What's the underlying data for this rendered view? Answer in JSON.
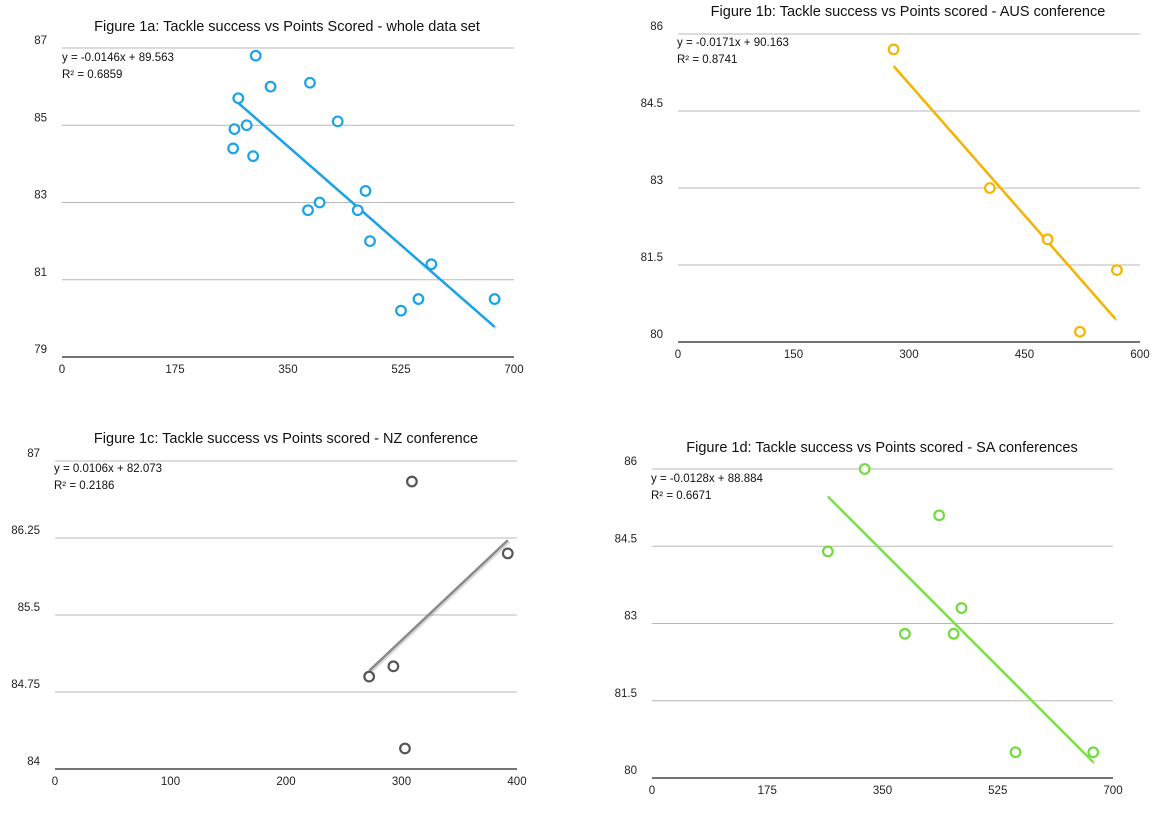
{
  "chart_data": [
    {
      "type": "scatter",
      "title": "Figure 1a: Tackle success vs Points Scored - whole data set",
      "color": "#1aa3e8",
      "trend_color": "#1aa3e8",
      "xlim": [
        0,
        700
      ],
      "ylim": [
        79,
        87
      ],
      "xticks": [
        0,
        175,
        350,
        525,
        700
      ],
      "yticks": [
        79,
        81,
        83,
        85,
        87
      ],
      "ytick_labels": [
        "79",
        "81",
        "83",
        "85",
        "87"
      ],
      "equation": "y = -0.0146x + 89.563",
      "r2": "R² = 0.6859",
      "trend": {
        "slope": -0.0146,
        "intercept": 89.563,
        "x_range": [
          265,
          670
        ]
      },
      "points": [
        {
          "x": 265,
          "y": 84.4
        },
        {
          "x": 267,
          "y": 84.9
        },
        {
          "x": 273,
          "y": 85.7
        },
        {
          "x": 286,
          "y": 85.0
        },
        {
          "x": 296,
          "y": 84.2
        },
        {
          "x": 300,
          "y": 86.8
        },
        {
          "x": 323,
          "y": 86.0
        },
        {
          "x": 381,
          "y": 82.8
        },
        {
          "x": 384,
          "y": 86.1
        },
        {
          "x": 399,
          "y": 83.0
        },
        {
          "x": 427,
          "y": 85.1
        },
        {
          "x": 458,
          "y": 82.8
        },
        {
          "x": 470,
          "y": 83.3
        },
        {
          "x": 477,
          "y": 82.0
        },
        {
          "x": 525,
          "y": 80.2
        },
        {
          "x": 552,
          "y": 80.5
        },
        {
          "x": 572,
          "y": 81.4
        },
        {
          "x": 670,
          "y": 80.5
        }
      ]
    },
    {
      "type": "scatter",
      "title": "Figure 1b: Tackle success vs Points scored - AUS conference",
      "color": "#f5b400",
      "trend_color": "#f5b400",
      "xlim": [
        0,
        600
      ],
      "ylim": [
        80,
        86
      ],
      "xticks": [
        0,
        150,
        300,
        450,
        600
      ],
      "yticks": [
        80,
        81.5,
        83,
        84.5,
        86
      ],
      "ytick_labels": [
        "80",
        "81.5",
        "83",
        "84.5",
        "86"
      ],
      "equation": "y = -0.0171x + 90.163",
      "r2": "R² = 0.8741",
      "trend": {
        "slope": -0.0171,
        "intercept": 90.163,
        "x_range": [
          280,
          568
        ]
      },
      "points": [
        {
          "x": 280,
          "y": 85.7
        },
        {
          "x": 405,
          "y": 83.0
        },
        {
          "x": 480,
          "y": 82.0
        },
        {
          "x": 522,
          "y": 80.2
        },
        {
          "x": 570,
          "y": 81.4
        }
      ]
    },
    {
      "type": "scatter",
      "title": "Figure 1c: Tackle success vs Points scored - NZ conference",
      "color": "#555555",
      "trend_color": "#8a8a8a",
      "xlim": [
        0,
        400
      ],
      "ylim": [
        84,
        87
      ],
      "xticks": [
        0,
        100,
        200,
        300,
        400
      ],
      "yticks": [
        84,
        84.75,
        85.5,
        86.25,
        87
      ],
      "ytick_labels": [
        "84",
        "84.75",
        "85.5",
        "86.25",
        "87"
      ],
      "equation": "y = 0.0106x + 82.073",
      "r2": "R² = 0.2186",
      "trend": {
        "slope": 0.0106,
        "intercept": 82.073,
        "x_range": [
          272,
          392
        ]
      },
      "points": [
        {
          "x": 272,
          "y": 84.9
        },
        {
          "x": 293,
          "y": 85.0
        },
        {
          "x": 303,
          "y": 84.2
        },
        {
          "x": 309,
          "y": 86.8
        },
        {
          "x": 392,
          "y": 86.1
        }
      ]
    },
    {
      "type": "scatter",
      "title": "Figure 1d: Tackle success vs Points scored - SA conferences",
      "color": "#6fdc3c",
      "trend_color": "#7ee04a",
      "xlim": [
        0,
        700
      ],
      "ylim": [
        80,
        86
      ],
      "xticks": [
        0,
        175,
        350,
        525,
        700
      ],
      "yticks": [
        80,
        81.5,
        83,
        84.5,
        86
      ],
      "ytick_labels": [
        "80",
        "81.5",
        "83",
        "84.5",
        "86"
      ],
      "equation": "y = -0.0128x + 88.884",
      "r2": "R² = 0.6671",
      "trend": {
        "slope": -0.0128,
        "intercept": 88.884,
        "x_range": [
          267,
          670
        ]
      },
      "points": [
        {
          "x": 267,
          "y": 84.4
        },
        {
          "x": 323,
          "y": 86.0
        },
        {
          "x": 384,
          "y": 82.8
        },
        {
          "x": 436,
          "y": 85.1
        },
        {
          "x": 458,
          "y": 82.8
        },
        {
          "x": 470,
          "y": 83.3
        },
        {
          "x": 552,
          "y": 80.5
        },
        {
          "x": 670,
          "y": 80.5
        }
      ]
    }
  ]
}
